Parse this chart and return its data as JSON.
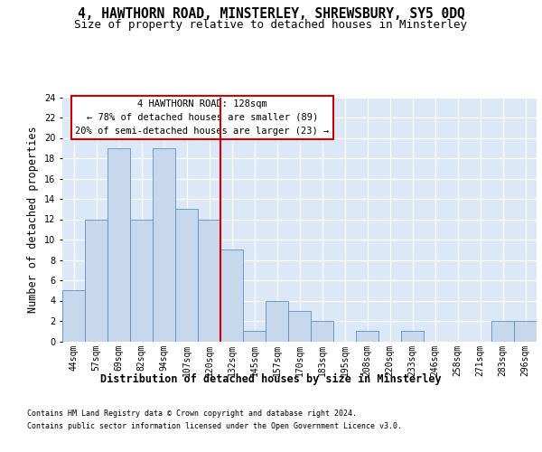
{
  "title": "4, HAWTHORN ROAD, MINSTERLEY, SHREWSBURY, SY5 0DQ",
  "subtitle": "Size of property relative to detached houses in Minsterley",
  "xlabel_bottom": "Distribution of detached houses by size in Minsterley",
  "ylabel": "Number of detached properties",
  "categories": [
    "44sqm",
    "57sqm",
    "69sqm",
    "82sqm",
    "94sqm",
    "107sqm",
    "120sqm",
    "132sqm",
    "145sqm",
    "157sqm",
    "170sqm",
    "183sqm",
    "195sqm",
    "208sqm",
    "220sqm",
    "233sqm",
    "246sqm",
    "258sqm",
    "271sqm",
    "283sqm",
    "296sqm"
  ],
  "values": [
    5,
    12,
    19,
    12,
    19,
    13,
    12,
    9,
    1,
    4,
    3,
    2,
    0,
    1,
    0,
    1,
    0,
    0,
    0,
    2,
    2
  ],
  "bar_color": "#c8d8ec",
  "bar_edge_color": "#5a8ec8",
  "redline_x": 6.5,
  "redline_color": "#cc0000",
  "annotation_line1": "4 HAWTHORN ROAD: 128sqm",
  "annotation_line2": "← 78% of detached houses are smaller (89)",
  "annotation_line3": "20% of semi-detached houses are larger (23) →",
  "annotation_box_facecolor": "#ffffff",
  "annotation_box_edgecolor": "#cc0000",
  "ylim": [
    0,
    24
  ],
  "yticks": [
    0,
    2,
    4,
    6,
    8,
    10,
    12,
    14,
    16,
    18,
    20,
    22,
    24
  ],
  "grid_color": "#ffffff",
  "bg_color": "#dce8f5",
  "fig_bg_color": "#ffffff",
  "title_fontsize": 10.5,
  "subtitle_fontsize": 9,
  "ylabel_fontsize": 8.5,
  "tick_fontsize": 7,
  "annotation_fontsize": 7.5,
  "xlabel_bottom_fontsize": 8.5,
  "footnote_fontsize": 6,
  "footnote1": "Contains HM Land Registry data © Crown copyright and database right 2024.",
  "footnote2": "Contains public sector information licensed under the Open Government Licence v3.0."
}
